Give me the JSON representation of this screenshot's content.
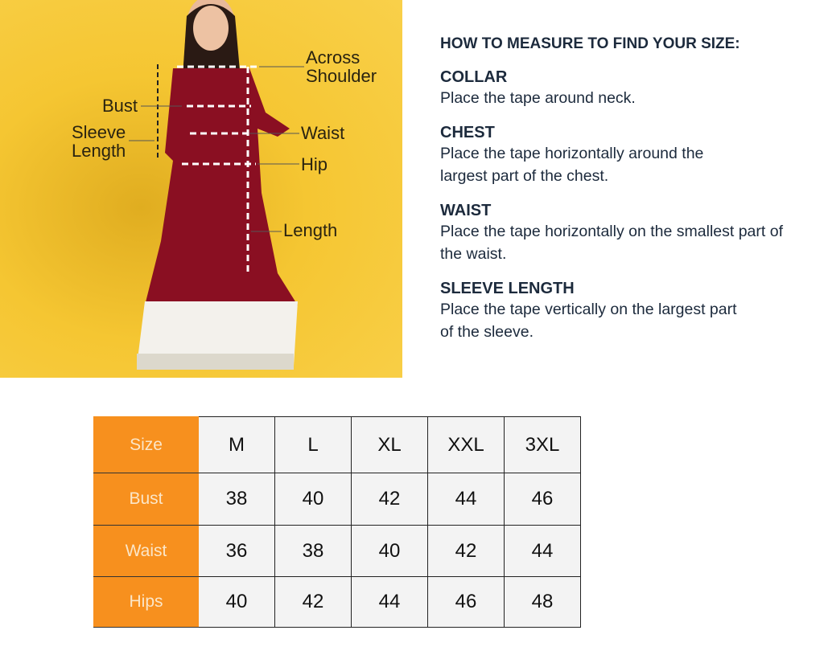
{
  "figure": {
    "labels": {
      "across_shoulder": "Across\nShoulder",
      "bust": "Bust",
      "sleeve_length": "Sleeve\nLength",
      "waist": "Waist",
      "hip": "Hip",
      "length": "Length"
    }
  },
  "guide": {
    "title": "HOW TO MEASURE TO FIND YOUR SIZE:",
    "sections": [
      {
        "heading": "COLLAR",
        "text": "Place the tape around neck."
      },
      {
        "heading": "CHEST",
        "text": "Place the tape horizontally around the largest part of the chest."
      },
      {
        "heading": "WAIST",
        "text": "Place the tape horizontally on the smallest part of the waist."
      },
      {
        "heading": "SLEEVE LENGTH",
        "text": "Place the tape vertically on the largest part of the sleeve."
      }
    ]
  },
  "size_table": {
    "header_color": "#f7901e",
    "rows": [
      {
        "label": "Size",
        "values": [
          "M",
          "L",
          "XL",
          "XXL",
          "3XL"
        ]
      },
      {
        "label": "Bust",
        "values": [
          "38",
          "40",
          "42",
          "44",
          "46"
        ]
      },
      {
        "label": "Waist",
        "values": [
          "36",
          "38",
          "40",
          "42",
          "44"
        ]
      },
      {
        "label": "Hips",
        "values": [
          "40",
          "42",
          "44",
          "46",
          "48"
        ]
      }
    ]
  }
}
